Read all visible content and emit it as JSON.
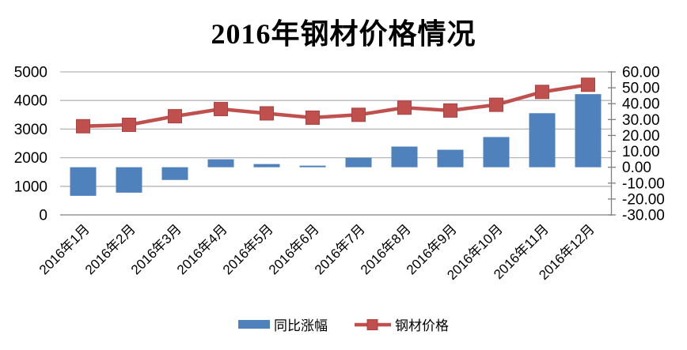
{
  "chart_data": {
    "type": "combo_bar_line",
    "title": "2016年钢材价格情况",
    "categories": [
      "2016年1月",
      "2016年2月",
      "2016年3月",
      "2016年4月",
      "2016年5月",
      "2016年6月",
      "2016年7月",
      "2016年8月",
      "2016年9月",
      "2016年10月",
      "2016年11月",
      "2016年12月"
    ],
    "series": [
      {
        "name": "同比涨幅",
        "type": "bar",
        "axis": "right",
        "color": "#4F81BD",
        "values": [
          -18,
          -16,
          -8,
          5,
          2,
          1,
          6,
          13,
          11,
          19,
          34,
          46
        ]
      },
      {
        "name": "钢材价格",
        "type": "line",
        "axis": "left",
        "color": "#C0504D",
        "marker": "square",
        "values": [
          3100,
          3150,
          3450,
          3700,
          3550,
          3400,
          3500,
          3750,
          3650,
          3850,
          4300,
          4550
        ]
      }
    ],
    "left_axis": {
      "min": 0,
      "max": 5000,
      "step": 1000,
      "ticks": [
        "5000",
        "4000",
        "3000",
        "2000",
        "1000",
        "0"
      ]
    },
    "right_axis": {
      "min": -30,
      "max": 60,
      "step": 10,
      "ticks": [
        "60.00",
        "50.00",
        "40.00",
        "30.00",
        "20.00",
        "10.00",
        "0.00",
        "-10.00",
        "-20.00",
        "-30.00"
      ]
    },
    "grid": true,
    "legend_position": "bottom",
    "colors": {
      "grid": "#b6b6b6",
      "axis": "#808080",
      "text": "#000000",
      "bar": "#4F81BD",
      "line": "#C0504D",
      "marker_edge": "#a84442",
      "frame_border": "#595959",
      "background": "#ffffff"
    }
  }
}
